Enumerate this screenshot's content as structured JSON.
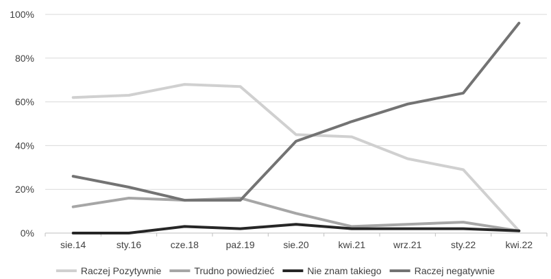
{
  "chart_data": {
    "type": "line",
    "categories": [
      "sie.14",
      "sty.16",
      "cze.18",
      "paź.19",
      "sie.20",
      "kwi.21",
      "wrz.21",
      "sty.22",
      "kwi.22"
    ],
    "ylim": [
      0,
      100
    ],
    "yticks": [
      0,
      20,
      40,
      60,
      80,
      100
    ],
    "ytick_labels": [
      "0%",
      "20%",
      "40%",
      "60%",
      "80%",
      "100%"
    ],
    "grid": "horizontal",
    "legend_position": "bottom",
    "title": "",
    "xlabel": "",
    "ylabel": "",
    "series": [
      {
        "name": "Raczej Pozytywnie",
        "color": "#d0d0d0",
        "values": [
          62,
          63,
          68,
          67,
          45,
          44,
          34,
          29,
          1
        ]
      },
      {
        "name": "Trudno powiedzieć",
        "color": "#a6a6a6",
        "values": [
          12,
          16,
          15,
          16,
          9,
          3,
          4,
          5,
          1
        ]
      },
      {
        "name": "Nie znam takiego",
        "color": "#262626",
        "values": [
          0,
          0,
          3,
          2,
          4,
          2,
          2,
          2,
          1
        ]
      },
      {
        "name": "Raczej negatywnie",
        "color": "#737373",
        "values": [
          26,
          21,
          15,
          15,
          42,
          51,
          59,
          64,
          96
        ]
      }
    ]
  }
}
